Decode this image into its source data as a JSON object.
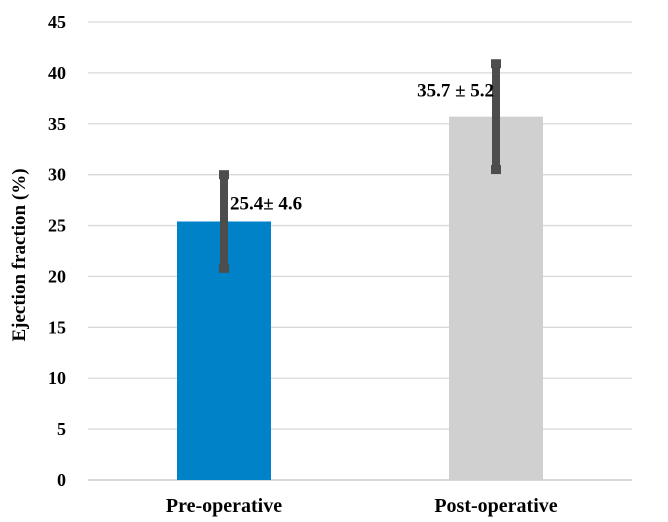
{
  "chart_data": {
    "type": "bar",
    "title": "",
    "xlabel": "",
    "ylabel": "Ejection fraction (%)",
    "ylim": [
      0,
      45
    ],
    "yticks": [
      0,
      5,
      10,
      15,
      20,
      25,
      30,
      35,
      40,
      45
    ],
    "grid": true,
    "categories": [
      "Pre-operative",
      "Post-operative"
    ],
    "values": [
      25.4,
      35.7
    ],
    "errors": [
      4.6,
      5.2
    ],
    "data_labels": [
      "25.4± 4.6",
      "35.7 ± 5.2"
    ],
    "bar_colors": [
      "#0082c8",
      "#d0d0d0"
    ]
  }
}
